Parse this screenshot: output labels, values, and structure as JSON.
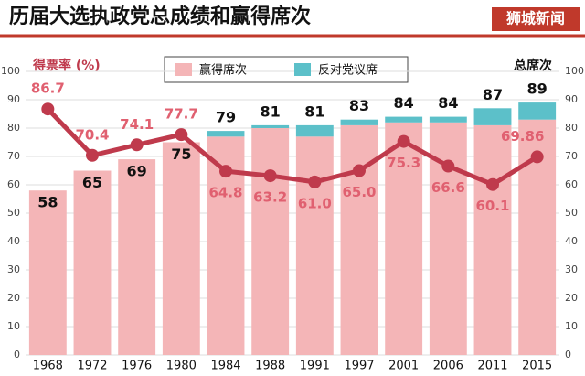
{
  "chart_data": {
    "type": "bar",
    "title": "历届大选执政党总成绩和赢得席次",
    "source": "狮城新闻",
    "categories": [
      "1968",
      "1972",
      "1976",
      "1980",
      "1984",
      "1988",
      "1991",
      "1997",
      "2001",
      "2006",
      "2011",
      "2015"
    ],
    "series": [
      {
        "name": "赢得席次",
        "type": "bar",
        "axis": "y2",
        "color": "#f4b5b7",
        "values": [
          58,
          65,
          69,
          75,
          77,
          80,
          77,
          81,
          82,
          82,
          81,
          83
        ]
      },
      {
        "name": "反对党议席",
        "type": "bar",
        "axis": "y2",
        "color": "#5cc0c9",
        "values": [
          0,
          0,
          0,
          0,
          2,
          1,
          4,
          2,
          2,
          2,
          6,
          6
        ]
      },
      {
        "name": "得票率",
        "type": "line",
        "axis": "y",
        "color": "#bf3a4c",
        "values": [
          86.7,
          70.4,
          74.1,
          77.7,
          64.8,
          63.2,
          61.0,
          65.0,
          75.3,
          66.6,
          60.1,
          69.86
        ],
        "value_labels": [
          "86.7",
          "70.4",
          "74.1",
          "77.7",
          "64.8",
          "63.2",
          "61.0",
          "65.0",
          "75.3",
          "66.6",
          "60.1",
          "69.86"
        ]
      }
    ],
    "totals": [
      58,
      65,
      69,
      75,
      79,
      81,
      81,
      83,
      84,
      84,
      87,
      89
    ],
    "y_label": "得票率 (%)",
    "y2_label": "总席次",
    "ylim": [
      0,
      100
    ],
    "yticks": [
      0,
      10,
      20,
      30,
      40,
      50,
      60,
      70,
      80,
      90,
      100
    ],
    "y2lim": [
      0,
      100
    ],
    "y2ticks": [
      0,
      10,
      20,
      30,
      40,
      50,
      60,
      70,
      80,
      90,
      100
    ],
    "grid": true
  }
}
